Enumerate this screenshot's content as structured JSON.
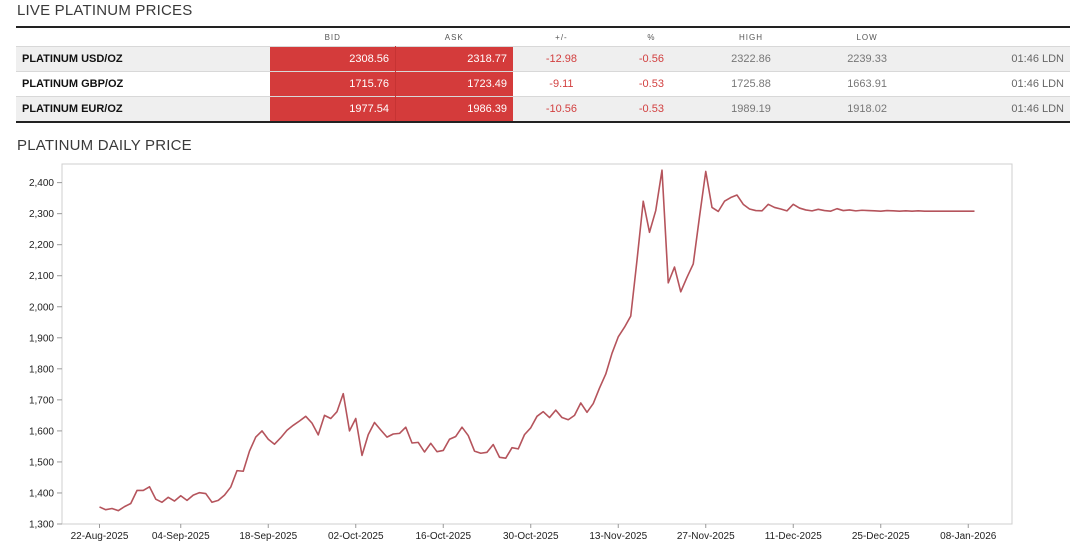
{
  "live_prices": {
    "title": "LIVE PLATINUM PRICES",
    "columns": [
      "",
      "BID",
      "ASK",
      "+/-",
      "%",
      "HIGH",
      "LOW",
      ""
    ],
    "rows": [
      {
        "name": "PLATINUM USD/OZ",
        "bid": "2308.56",
        "ask": "2318.77",
        "change": "-12.98",
        "pct": "-0.56",
        "high": "2322.86",
        "low": "2239.33",
        "time": "01:46 LDN"
      },
      {
        "name": "PLATINUM GBP/OZ",
        "bid": "1715.76",
        "ask": "1723.49",
        "change": "-9.11",
        "pct": "-0.53",
        "high": "1725.88",
        "low": "1663.91",
        "time": "01:46 LDN"
      },
      {
        "name": "PLATINUM EUR/OZ",
        "bid": "1977.54",
        "ask": "1986.39",
        "change": "-10.56",
        "pct": "-0.53",
        "high": "1989.19",
        "low": "1918.02",
        "time": "01:46 LDN"
      }
    ]
  },
  "colors": {
    "bid_ask_bg": "#d43b3b",
    "negative": "#d24040",
    "line": "#b5545c"
  },
  "chart_data": {
    "type": "line",
    "title": "PLATINUM DAILY PRICE",
    "xlabel": "",
    "ylabel": "",
    "ylim": [
      1300,
      2460
    ],
    "yticks": [
      1300,
      1400,
      1500,
      1600,
      1700,
      1800,
      1900,
      2000,
      2100,
      2200,
      2300,
      2400
    ],
    "ytick_labels": [
      "1,300",
      "1,400",
      "1,500",
      "1,600",
      "1,700",
      "1,800",
      "1,900",
      "2,000",
      "2,100",
      "2,200",
      "2,300",
      "2,400"
    ],
    "xticks": [
      "2025-08-22",
      "2025-09-04",
      "2025-09-18",
      "2025-10-02",
      "2025-10-16",
      "2025-10-30",
      "2025-11-13",
      "2025-11-27",
      "2025-12-11",
      "2025-12-25",
      "2026-01-08"
    ],
    "xtick_labels": [
      "22-Aug-2025",
      "04-Sep-2025",
      "18-Sep-2025",
      "02-Oct-2025",
      "16-Oct-2025",
      "30-Oct-2025",
      "13-Nov-2025",
      "27-Nov-2025",
      "11-Dec-2025",
      "25-Dec-2025",
      "08-Jan-2026"
    ],
    "xlim": [
      "2025-08-16",
      "2026-01-15"
    ],
    "grid": false,
    "legend": "none",
    "series": [
      {
        "x": [
          "2025-08-22",
          "2025-08-23",
          "2025-08-24",
          "2025-08-25",
          "2025-08-26",
          "2025-08-27",
          "2025-08-28",
          "2025-08-29",
          "2025-08-30",
          "2025-08-31",
          "2025-09-01",
          "2025-09-02",
          "2025-09-03",
          "2025-09-04",
          "2025-09-05",
          "2025-09-06",
          "2025-09-07",
          "2025-09-08",
          "2025-09-09",
          "2025-09-10",
          "2025-09-11",
          "2025-09-12",
          "2025-09-13",
          "2025-09-14",
          "2025-09-15",
          "2025-09-16",
          "2025-09-17",
          "2025-09-18",
          "2025-09-19",
          "2025-09-20",
          "2025-09-21",
          "2025-09-22",
          "2025-09-23",
          "2025-09-24",
          "2025-09-25",
          "2025-09-26",
          "2025-09-27",
          "2025-09-28",
          "2025-09-29",
          "2025-09-30",
          "2025-10-01",
          "2025-10-02",
          "2025-10-03",
          "2025-10-04",
          "2025-10-05",
          "2025-10-06",
          "2025-10-07",
          "2025-10-08",
          "2025-10-09",
          "2025-10-10",
          "2025-10-11",
          "2025-10-12",
          "2025-10-13",
          "2025-10-14",
          "2025-10-15",
          "2025-10-16",
          "2025-10-17",
          "2025-10-18",
          "2025-10-19",
          "2025-10-20",
          "2025-10-21",
          "2025-10-22",
          "2025-10-23",
          "2025-10-24",
          "2025-10-25",
          "2025-10-26",
          "2025-10-27",
          "2025-10-28",
          "2025-10-29",
          "2025-10-30",
          "2025-10-31",
          "2025-11-01",
          "2025-11-02",
          "2025-11-03",
          "2025-11-04",
          "2025-11-05",
          "2025-11-06",
          "2025-11-07",
          "2025-11-08",
          "2025-11-09",
          "2025-11-10",
          "2025-11-11",
          "2025-11-12",
          "2025-11-13",
          "2025-11-14",
          "2025-11-15",
          "2025-11-16",
          "2025-11-17",
          "2025-11-18",
          "2025-11-19",
          "2025-11-20",
          "2025-11-21",
          "2025-11-22",
          "2025-11-23",
          "2025-11-24",
          "2025-11-25",
          "2025-11-26",
          "2025-11-27",
          "2025-11-28",
          "2025-11-29",
          "2025-11-30",
          "2025-12-01",
          "2025-12-02",
          "2025-12-03",
          "2025-12-04",
          "2025-12-05",
          "2025-12-06",
          "2025-12-07",
          "2025-12-08",
          "2025-12-09",
          "2025-12-10",
          "2025-12-11",
          "2025-12-12",
          "2025-12-13",
          "2025-12-14",
          "2025-12-15",
          "2025-12-16",
          "2025-12-17",
          "2025-12-18",
          "2025-12-19",
          "2025-12-20",
          "2025-12-21",
          "2025-12-22",
          "2025-12-23",
          "2025-12-24",
          "2025-12-25",
          "2025-12-26",
          "2025-12-27",
          "2025-12-28",
          "2025-12-29",
          "2025-12-30",
          "2025-12-31",
          "2026-01-01",
          "2026-01-02",
          "2026-01-03",
          "2026-01-04",
          "2026-01-05",
          "2026-01-06",
          "2026-01-07",
          "2026-01-08",
          "2026-01-09"
        ],
        "values": [
          1355,
          1346,
          1350,
          1343,
          1356,
          1366,
          1408,
          1408,
          1420,
          1380,
          1370,
          1386,
          1374,
          1391,
          1376,
          1393,
          1401,
          1398,
          1370,
          1376,
          1393,
          1419,
          1472,
          1470,
          1535,
          1580,
          1600,
          1573,
          1557,
          1578,
          1602,
          1618,
          1632,
          1647,
          1625,
          1587,
          1650,
          1640,
          1662,
          1720,
          1600,
          1640,
          1521,
          1588,
          1627,
          1603,
          1580,
          1590,
          1592,
          1612,
          1561,
          1563,
          1532,
          1560,
          1533,
          1537,
          1573,
          1582,
          1612,
          1585,
          1535,
          1528,
          1531,
          1556,
          1515,
          1512,
          1546,
          1542,
          1588,
          1610,
          1647,
          1662,
          1643,
          1667,
          1643,
          1636,
          1650,
          1690,
          1660,
          1688,
          1738,
          1783,
          1850,
          1903,
          1934,
          1970,
          2150,
          2340,
          2240,
          2310,
          2440,
          2077,
          2128,
          2048,
          2095,
          2138,
          2290,
          2436,
          2320,
          2307,
          2340,
          2352,
          2360,
          2330,
          2315,
          2310,
          2309,
          2330,
          2320,
          2315,
          2309,
          2330,
          2318,
          2312,
          2309,
          2314,
          2310,
          2308,
          2316,
          2310,
          2312,
          2309,
          2311,
          2310,
          2309,
          2308,
          2310,
          2309,
          2308,
          2309,
          2308,
          2309,
          2308,
          2308,
          2308,
          2308,
          2308,
          2308,
          2308,
          2308,
          2308
        ]
      }
    ]
  }
}
